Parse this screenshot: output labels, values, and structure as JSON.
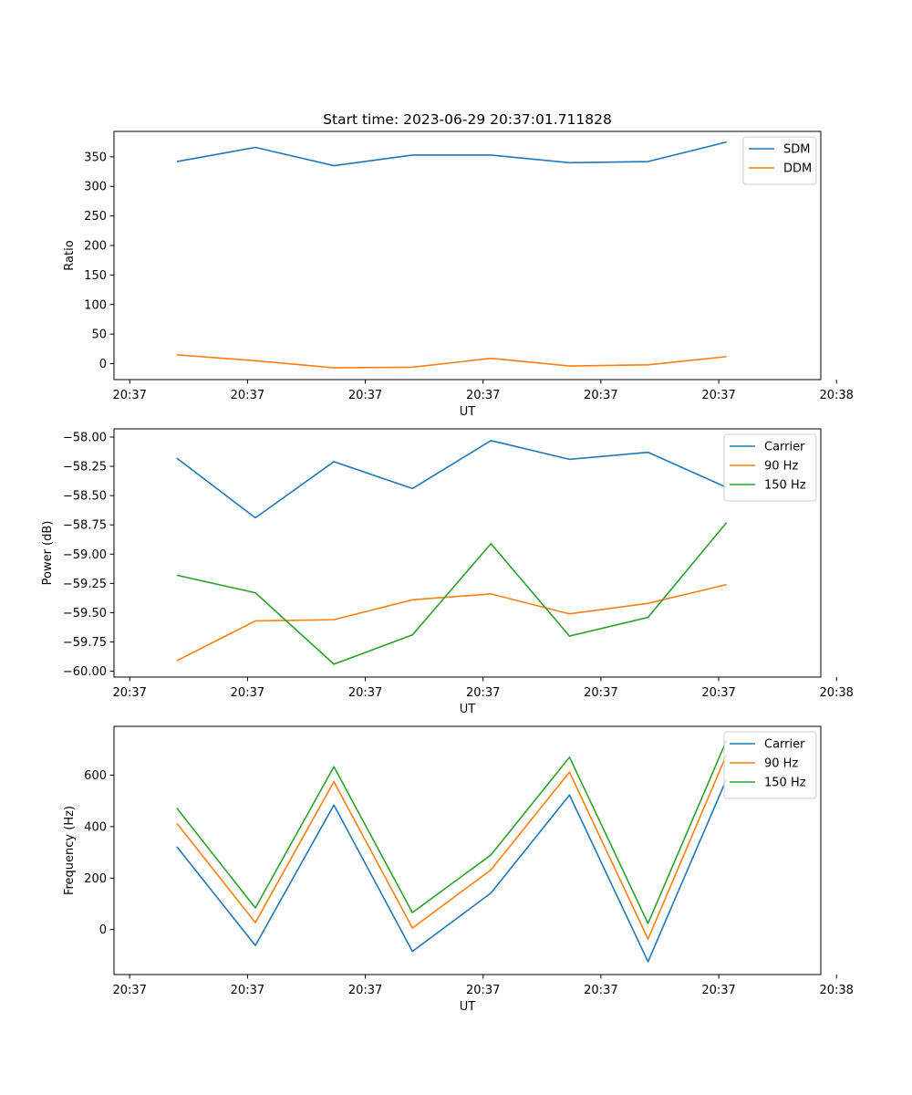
{
  "chart_data": [
    {
      "type": "line",
      "title": "Start time: 2023-06-29 20:37:01.711828",
      "xlabel": "UT",
      "ylabel": "Ratio",
      "x": [
        1,
        2,
        3,
        4,
        5,
        6,
        7,
        8
      ],
      "xlim": [
        0.2,
        9.2
      ],
      "xticks": [
        0.4,
        1.9,
        3.4,
        4.9,
        6.4,
        7.9,
        9.4
      ],
      "xtick_labels": [
        "20:37",
        "20:37",
        "20:37",
        "20:37",
        "20:37",
        "20:37",
        "20:38"
      ],
      "ylim": [
        -27,
        393
      ],
      "yticks": [
        0,
        50,
        100,
        150,
        200,
        250,
        300,
        350
      ],
      "ytick_labels": [
        "0",
        "50",
        "100",
        "150",
        "200",
        "250",
        "300",
        "350"
      ],
      "legend": "top-right",
      "grid": false,
      "series": [
        {
          "name": "SDM",
          "color": "#1f77b4",
          "values": [
            342,
            366,
            335,
            353,
            353,
            340,
            342,
            375
          ]
        },
        {
          "name": "DDM",
          "color": "#ff7f0e",
          "values": [
            15,
            5,
            -7,
            -6,
            9,
            -4,
            -2,
            12
          ]
        }
      ]
    },
    {
      "type": "line",
      "title": "",
      "xlabel": "UT",
      "ylabel": "Power (dB)",
      "x": [
        1,
        2,
        3,
        4,
        5,
        6,
        7,
        8
      ],
      "xlim": [
        0.2,
        9.2
      ],
      "xticks": [
        0.4,
        1.9,
        3.4,
        4.9,
        6.4,
        7.9,
        9.4
      ],
      "xtick_labels": [
        "20:37",
        "20:37",
        "20:37",
        "20:37",
        "20:37",
        "20:37",
        "20:38"
      ],
      "ylim": [
        -60.05,
        -57.93
      ],
      "yticks": [
        -60.0,
        -59.75,
        -59.5,
        -59.25,
        -59.0,
        -58.75,
        -58.5,
        -58.25,
        -58.0
      ],
      "ytick_labels": [
        "−60.00",
        "−59.75",
        "−59.50",
        "−59.25",
        "−59.00",
        "−58.75",
        "−58.50",
        "−58.25",
        "−58.00"
      ],
      "legend": "top-right",
      "grid": false,
      "series": [
        {
          "name": "Carrier",
          "color": "#1f77b4",
          "values": [
            -58.18,
            -58.69,
            -58.21,
            -58.44,
            -58.03,
            -58.19,
            -58.13,
            -58.43
          ]
        },
        {
          "name": "90 Hz",
          "color": "#ff7f0e",
          "values": [
            -59.91,
            -59.57,
            -59.56,
            -59.39,
            -59.34,
            -59.51,
            -59.42,
            -59.26
          ]
        },
        {
          "name": "150 Hz",
          "color": "#2ca02c",
          "values": [
            -59.18,
            -59.33,
            -59.94,
            -59.69,
            -58.91,
            -59.7,
            -59.54,
            -58.73
          ]
        }
      ]
    },
    {
      "type": "line",
      "title": "",
      "xlabel": "UT",
      "ylabel": "Frequency (Hz)",
      "x": [
        1,
        2,
        3,
        4,
        5,
        6,
        7,
        8
      ],
      "xlim": [
        0.2,
        9.2
      ],
      "xticks": [
        0.4,
        1.9,
        3.4,
        4.9,
        6.4,
        7.9,
        9.4
      ],
      "xtick_labels": [
        "20:37",
        "20:37",
        "20:37",
        "20:37",
        "20:37",
        "20:37",
        "20:38"
      ],
      "ylim": [
        -175,
        790
      ],
      "yticks": [
        0,
        200,
        400,
        600
      ],
      "ytick_labels": [
        "0",
        "200",
        "400",
        "600"
      ],
      "legend": "top-right",
      "grid": false,
      "series": [
        {
          "name": "Carrier",
          "color": "#1f77b4",
          "values": [
            322,
            -62,
            484,
            -85,
            142,
            523,
            -125,
            585
          ]
        },
        {
          "name": "90 Hz",
          "color": "#ff7f0e",
          "values": [
            413,
            27,
            575,
            6,
            232,
            612,
            -37,
            680
          ]
        },
        {
          "name": "150 Hz",
          "color": "#2ca02c",
          "values": [
            472,
            84,
            633,
            66,
            290,
            670,
            24,
            736
          ]
        }
      ]
    }
  ]
}
